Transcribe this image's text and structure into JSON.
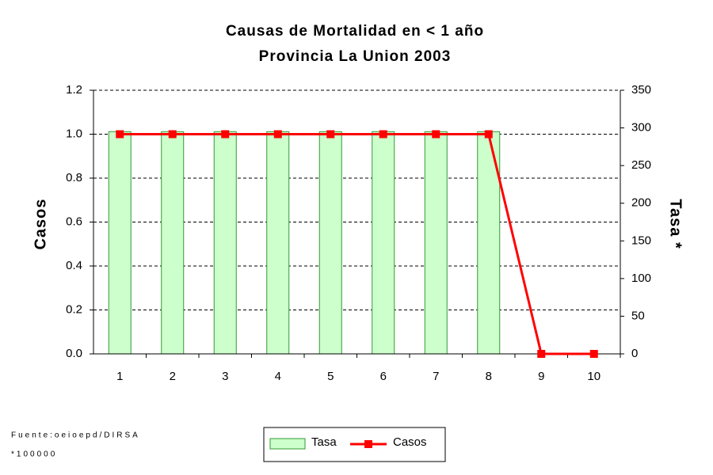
{
  "chart_data": {
    "type": "bar-line",
    "title": "Causas de Mortalidad en < 1 año",
    "subtitle": "Provincia La Union 2003",
    "ylabel": "Casos",
    "y2label": "Tasa *",
    "categories": [
      "1",
      "2",
      "3",
      "4",
      "5",
      "6",
      "7",
      "8",
      "9",
      "10"
    ],
    "series": [
      {
        "name": "Tasa",
        "type": "bar",
        "axis": "y2",
        "color": "#ccffcc",
        "values": [
          295,
          295,
          295,
          295,
          295,
          295,
          295,
          295,
          0,
          0
        ]
      },
      {
        "name": "Casos",
        "type": "line",
        "color": "#ff0000",
        "values": [
          1,
          1,
          1,
          1,
          1,
          1,
          1,
          1,
          0,
          0
        ]
      }
    ],
    "ylim": [
      0,
      1.2
    ],
    "yticks": [
      {
        "value": 0,
        "label": "0.0"
      },
      {
        "value": 0.2,
        "label": "0.2"
      },
      {
        "value": 0.4,
        "label": "0.4"
      },
      {
        "value": 0.6,
        "label": "0.6"
      },
      {
        "value": 0.8,
        "label": "0.8"
      },
      {
        "value": 1,
        "label": "1.0"
      },
      {
        "value": 1.2,
        "label": "1.2"
      }
    ],
    "y2lim": [
      0,
      350
    ],
    "y2ticks": [
      0,
      50,
      100,
      150,
      200,
      250,
      300,
      350
    ],
    "grid": true,
    "legend": "bottom",
    "notes": [
      "Fuente:oeioepd/DIRSA",
      "*100000"
    ]
  }
}
